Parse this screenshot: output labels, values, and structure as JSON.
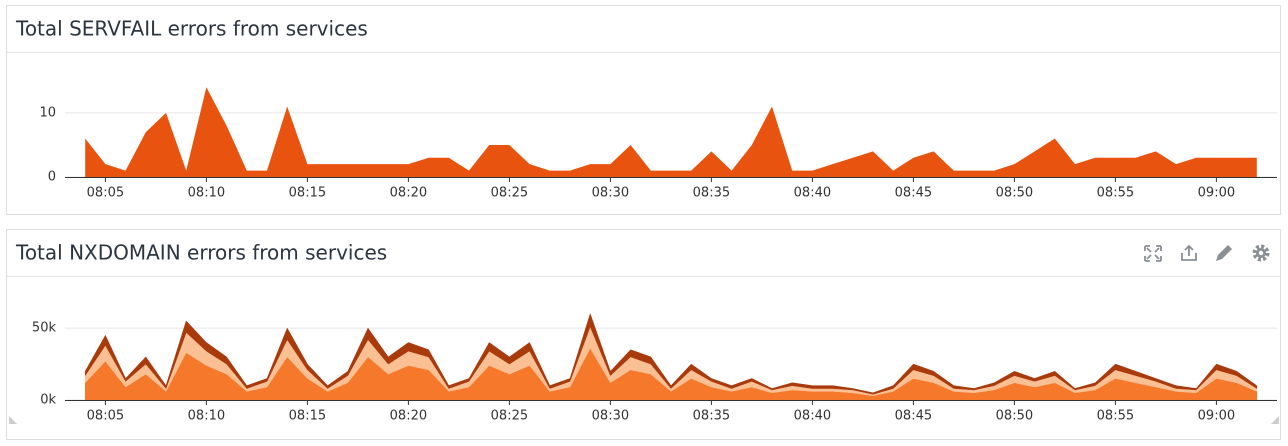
{
  "chart_data": [
    {
      "type": "area",
      "title": "Total SERVFAIL errors from services",
      "x": [
        "08:04",
        "08:05",
        "08:06",
        "08:07",
        "08:08",
        "08:09",
        "08:10",
        "08:11",
        "08:12",
        "08:13",
        "08:14",
        "08:15",
        "08:16",
        "08:17",
        "08:18",
        "08:19",
        "08:20",
        "08:21",
        "08:22",
        "08:23",
        "08:24",
        "08:25",
        "08:26",
        "08:27",
        "08:28",
        "08:29",
        "08:30",
        "08:31",
        "08:32",
        "08:33",
        "08:34",
        "08:35",
        "08:36",
        "08:37",
        "08:38",
        "08:39",
        "08:40",
        "08:41",
        "08:42",
        "08:43",
        "08:44",
        "08:45",
        "08:46",
        "08:47",
        "08:48",
        "08:49",
        "08:50",
        "08:51",
        "08:52",
        "08:53",
        "08:54",
        "08:55",
        "08:56",
        "08:57",
        "08:58",
        "08:59",
        "09:00",
        "09:01",
        "09:02"
      ],
      "values": [
        6,
        2,
        1,
        7,
        10,
        1,
        14,
        8,
        1,
        1,
        11,
        2,
        2,
        2,
        2,
        2,
        2,
        3,
        3,
        1,
        5,
        5,
        2,
        1,
        1,
        2,
        2,
        5,
        1,
        1,
        1,
        4,
        1,
        5,
        11,
        1,
        1,
        2,
        3,
        4,
        1,
        3,
        4,
        1,
        1,
        1,
        2,
        4,
        6,
        2,
        3,
        3,
        3,
        4,
        2,
        3,
        3,
        3,
        3
      ],
      "color": "#e8540f",
      "xlim": [
        "08:03",
        "09:03"
      ],
      "xticks": [
        "08:05",
        "08:10",
        "08:15",
        "08:20",
        "08:25",
        "08:30",
        "08:35",
        "08:40",
        "08:45",
        "08:50",
        "08:55",
        "09:00"
      ],
      "ylim": [
        0,
        17
      ],
      "yticks": [
        0,
        10
      ],
      "grid": true
    },
    {
      "type": "stacked_area",
      "title": "Total NXDOMAIN errors from services",
      "x": [
        "08:04",
        "08:05",
        "08:06",
        "08:07",
        "08:08",
        "08:09",
        "08:10",
        "08:11",
        "08:12",
        "08:13",
        "08:14",
        "08:15",
        "08:16",
        "08:17",
        "08:18",
        "08:19",
        "08:20",
        "08:21",
        "08:22",
        "08:23",
        "08:24",
        "08:25",
        "08:26",
        "08:27",
        "08:28",
        "08:29",
        "08:30",
        "08:31",
        "08:32",
        "08:33",
        "08:34",
        "08:35",
        "08:36",
        "08:37",
        "08:38",
        "08:39",
        "08:40",
        "08:41",
        "08:42",
        "08:43",
        "08:44",
        "08:45",
        "08:46",
        "08:47",
        "08:48",
        "08:49",
        "08:50",
        "08:51",
        "08:52",
        "08:53",
        "08:54",
        "08:55",
        "08:56",
        "08:57",
        "08:58",
        "08:59",
        "09:00",
        "09:01",
        "09:02"
      ],
      "series": [
        {
          "color": "#f5782b",
          "values": [
            12000,
            27000,
            9000,
            18000,
            6000,
            33000,
            24000,
            18000,
            6000,
            9000,
            30000,
            15000,
            6000,
            12000,
            30000,
            18000,
            24000,
            21000,
            6000,
            9000,
            24000,
            18000,
            24000,
            6000,
            9000,
            36000,
            12000,
            21000,
            18000,
            6000,
            15000,
            9000,
            6000,
            9000,
            5000,
            7000,
            6000,
            6000,
            5000,
            3000,
            6000,
            15000,
            12000,
            6000,
            5000,
            7000,
            12000,
            9000,
            12000,
            5000,
            7000,
            15000,
            12000,
            9000,
            6000,
            5000,
            15000,
            12000,
            6000
          ]
        },
        {
          "color": "#fbbf94",
          "values": [
            5000,
            11000,
            4000,
            7000,
            2000,
            14000,
            10000,
            7000,
            2000,
            4000,
            12000,
            6000,
            2000,
            5000,
            12000,
            7000,
            10000,
            9000,
            2000,
            4000,
            10000,
            7000,
            10000,
            2000,
            4000,
            15000,
            5000,
            9000,
            7000,
            2000,
            6000,
            4000,
            2000,
            4000,
            2000,
            3000,
            2000,
            2000,
            2000,
            1000,
            2000,
            6000,
            5000,
            2000,
            2000,
            3000,
            5000,
            4000,
            5000,
            2000,
            3000,
            6000,
            5000,
            4000,
            2000,
            2000,
            6000,
            5000,
            2000
          ]
        },
        {
          "color": "#a83a0c",
          "values": [
            3000,
            7000,
            2000,
            5000,
            2000,
            8000,
            6000,
            5000,
            2000,
            2000,
            8000,
            4000,
            2000,
            3000,
            8000,
            5000,
            6000,
            5000,
            2000,
            2000,
            6000,
            5000,
            6000,
            2000,
            2000,
            9000,
            3000,
            5000,
            5000,
            2000,
            4000,
            2000,
            2000,
            2000,
            1000,
            2000,
            2000,
            2000,
            1000,
            1000,
            2000,
            4000,
            3000,
            2000,
            1000,
            2000,
            3000,
            2000,
            3000,
            1000,
            2000,
            4000,
            3000,
            2000,
            2000,
            1000,
            4000,
            3000,
            2000
          ]
        }
      ],
      "xlim": [
        "08:03",
        "09:03"
      ],
      "xticks": [
        "08:05",
        "08:10",
        "08:15",
        "08:20",
        "08:25",
        "08:30",
        "08:35",
        "08:40",
        "08:45",
        "08:50",
        "08:55",
        "09:00"
      ],
      "ylim": [
        0,
        80000
      ],
      "yticks": [
        {
          "value": 0,
          "label": "0k"
        },
        {
          "value": 50000,
          "label": "50k"
        }
      ],
      "grid": true
    }
  ]
}
